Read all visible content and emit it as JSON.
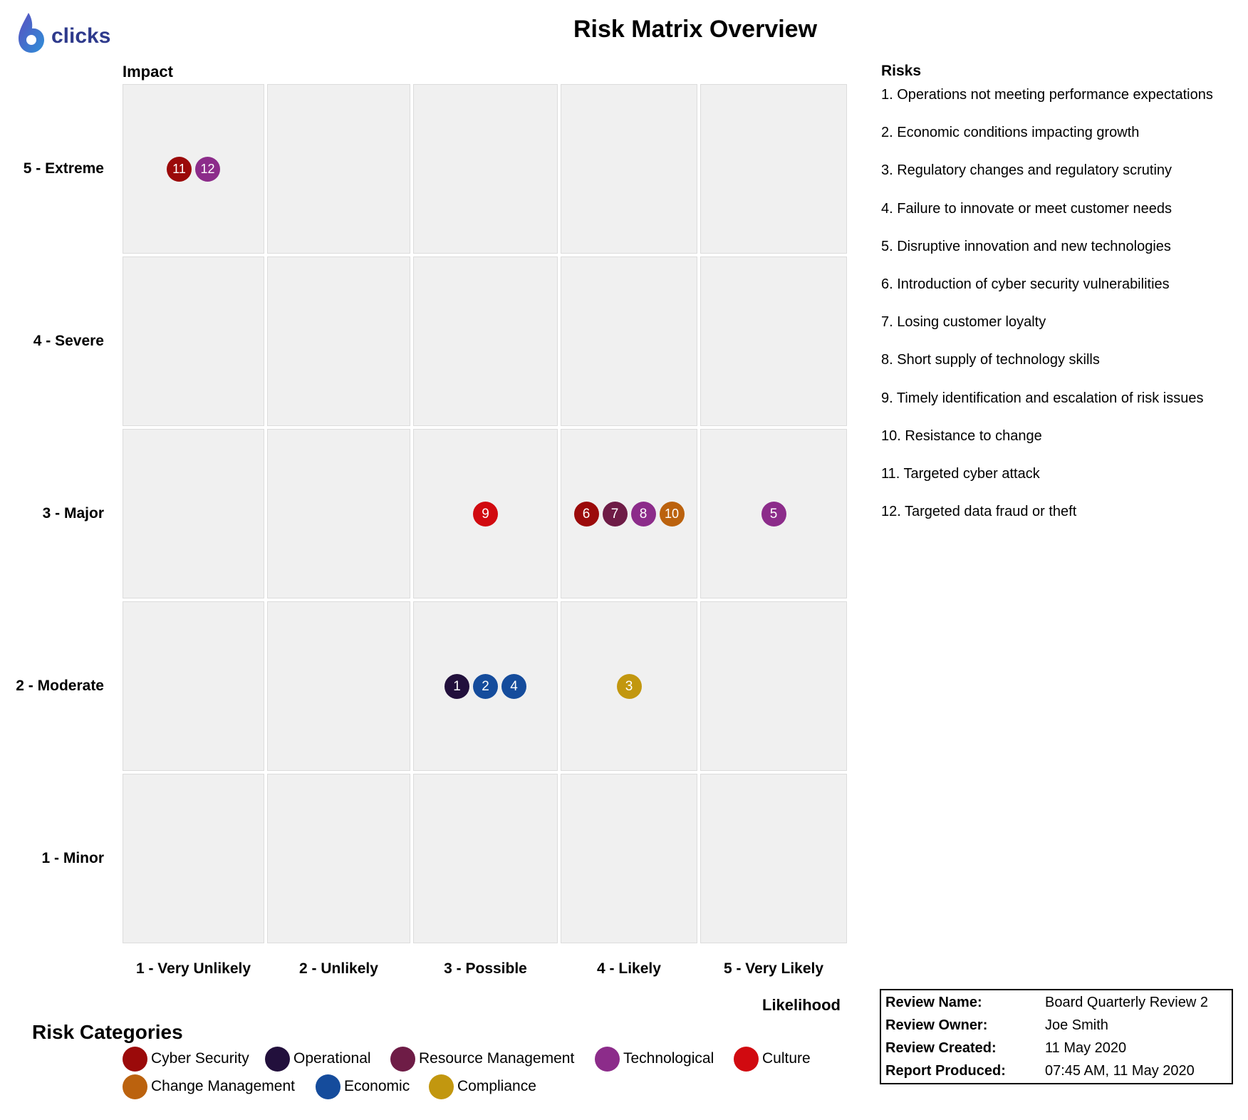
{
  "logo": {
    "text": "clicks",
    "icon": "six-drop-logo-icon",
    "colors": [
      "#5a4fc0",
      "#2f8fd8"
    ]
  },
  "title": "Risk Matrix Overview",
  "chart_data": {
    "type": "scatter",
    "title": "Risk Matrix Overview",
    "ylabel": "Impact",
    "xlabel": "Likelihood",
    "x_categories": [
      "1 - Very Unlikely",
      "2 - Unlikely",
      "3 - Possible",
      "4 - Likely",
      "5 - Very Likely"
    ],
    "y_categories": [
      "5 - Extreme",
      "4 - Severe",
      "3 - Major",
      "2 - Moderate",
      "1 - Minor"
    ],
    "points": [
      {
        "id": "11",
        "likelihood": 1,
        "impact": 5,
        "category": "Cyber Security"
      },
      {
        "id": "12",
        "likelihood": 1,
        "impact": 5,
        "category": "Technological"
      },
      {
        "id": "9",
        "likelihood": 3,
        "impact": 3,
        "category": "Culture"
      },
      {
        "id": "6",
        "likelihood": 4,
        "impact": 3,
        "category": "Cyber Security"
      },
      {
        "id": "7",
        "likelihood": 4,
        "impact": 3,
        "category": "Resource Management"
      },
      {
        "id": "8",
        "likelihood": 4,
        "impact": 3,
        "category": "Technological"
      },
      {
        "id": "10",
        "likelihood": 4,
        "impact": 3,
        "category": "Change Management"
      },
      {
        "id": "5",
        "likelihood": 5,
        "impact": 3,
        "category": "Technological"
      },
      {
        "id": "1",
        "likelihood": 3,
        "impact": 2,
        "category": "Operational"
      },
      {
        "id": "2",
        "likelihood": 3,
        "impact": 2,
        "category": "Economic"
      },
      {
        "id": "4",
        "likelihood": 3,
        "impact": 2,
        "category": "Economic"
      },
      {
        "id": "3",
        "likelihood": 4,
        "impact": 2,
        "category": "Compliance"
      }
    ]
  },
  "risks": {
    "title": "Risks",
    "items": [
      "1. Operations not meeting performance expectations",
      "2. Economic conditions impacting growth",
      "3. Regulatory changes and regulatory scrutiny",
      "4. Failure to innovate or meet customer needs",
      "5. Disruptive innovation and new technologies",
      "6. Introduction of cyber security vulnerabilities",
      "7. Losing customer loyalty",
      "8. Short supply of technology skills",
      "9. Timely identification and escalation of risk issues",
      "10. Resistance to change",
      "11. Targeted cyber attack",
      "12. Targeted data fraud or theft"
    ]
  },
  "categories": {
    "title": "Risk Categories",
    "items": [
      {
        "name": "Cyber Security",
        "color": "#9b0a0a"
      },
      {
        "name": "Operational",
        "color": "#22103c"
      },
      {
        "name": "Resource Management",
        "color": "#6e1c46"
      },
      {
        "name": "Technological",
        "color": "#8c2c8a"
      },
      {
        "name": "Culture",
        "color": "#d10a10"
      },
      {
        "name": "Change Management",
        "color": "#bb620e"
      },
      {
        "name": "Economic",
        "color": "#154c9c"
      },
      {
        "name": "Compliance",
        "color": "#c2970f"
      }
    ]
  },
  "review": {
    "rows": [
      {
        "key": "Review Name:",
        "value": "Board Quarterly Review 2"
      },
      {
        "key": "Review Owner:",
        "value": "Joe Smith"
      },
      {
        "key": "Review Created:",
        "value": "11 May 2020"
      },
      {
        "key": "Report Produced:",
        "value": "07:45 AM, 11 May 2020"
      }
    ]
  }
}
